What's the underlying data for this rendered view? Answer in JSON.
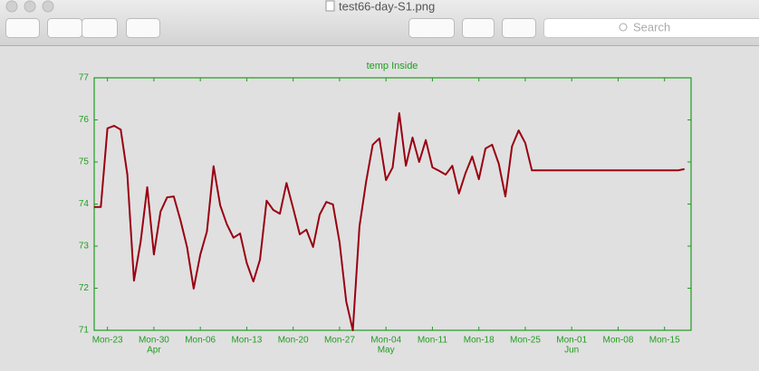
{
  "window": {
    "title": "test66-day-S1.png",
    "search_placeholder": "Search"
  },
  "chart_data": {
    "type": "line",
    "title": "temp Inside",
    "categories": [
      null,
      null,
      "Mon-23",
      null,
      null,
      null,
      null,
      null,
      null,
      "Mon-30",
      null,
      null,
      null,
      null,
      null,
      null,
      "Mon-06",
      null,
      null,
      null,
      null,
      null,
      null,
      "Mon-13",
      null,
      null,
      null,
      null,
      null,
      null,
      "Mon-20",
      null,
      null,
      null,
      null,
      null,
      null,
      "Mon-27",
      null,
      null,
      null,
      null,
      null,
      null,
      "Mon-04",
      null,
      null,
      null,
      null,
      null,
      null,
      "Mon-11",
      null,
      null,
      null,
      null,
      null,
      null,
      "Mon-18",
      null,
      null,
      null,
      null,
      null,
      null,
      "Mon-25",
      null,
      null,
      null,
      null,
      null,
      null,
      "Mon-01",
      null,
      null,
      null,
      null,
      null,
      null,
      "Mon-08",
      null,
      null,
      null,
      null,
      null,
      null,
      "Mon-15",
      null,
      null,
      null
    ],
    "month_labels": [
      null,
      null,
      null,
      null,
      null,
      null,
      null,
      null,
      null,
      "Apr",
      null,
      null,
      null,
      null,
      null,
      null,
      null,
      null,
      null,
      null,
      null,
      null,
      null,
      null,
      null,
      null,
      null,
      null,
      null,
      null,
      null,
      null,
      null,
      null,
      null,
      null,
      null,
      null,
      null,
      null,
      null,
      null,
      null,
      null,
      "May",
      null,
      null,
      null,
      null,
      null,
      null,
      null,
      null,
      null,
      null,
      null,
      null,
      null,
      null,
      null,
      null,
      null,
      null,
      null,
      null,
      null,
      null,
      null,
      null,
      null,
      null,
      null,
      "Jun",
      null,
      null,
      null,
      null,
      null,
      null,
      null,
      null,
      null,
      null,
      null,
      null,
      null,
      null,
      null,
      null,
      null
    ],
    "series": [
      {
        "name": "temp Inside",
        "color": "#990011",
        "values": [
          73.93,
          73.93,
          75.8,
          75.86,
          75.77,
          74.7,
          72.18,
          73.1,
          74.4,
          72.8,
          73.82,
          74.16,
          74.18,
          73.62,
          72.98,
          71.99,
          72.8,
          73.35,
          74.9,
          73.97,
          73.52,
          73.2,
          73.3,
          72.6,
          72.16,
          72.68,
          74.08,
          73.86,
          73.77,
          74.5,
          73.9,
          73.28,
          73.39,
          72.98,
          73.75,
          74.05,
          73.99,
          73.09,
          71.69,
          71.0,
          73.47,
          74.53,
          75.41,
          75.56,
          74.57,
          74.87,
          76.16,
          74.91,
          75.58,
          75.0,
          75.52,
          74.87,
          74.79,
          74.7,
          74.91,
          74.25,
          74.74,
          75.13,
          74.59,
          75.32,
          75.41,
          74.96,
          74.18,
          75.37,
          75.75,
          75.45,
          74.8,
          74.8,
          74.8,
          74.8,
          74.8,
          74.8,
          74.8,
          74.8,
          74.8,
          74.8,
          74.8,
          74.8,
          74.8,
          74.8,
          74.8,
          74.8,
          74.8,
          74.8,
          74.8,
          74.8,
          74.8,
          74.8,
          74.8,
          74.83
        ]
      }
    ],
    "ylim": [
      71,
      77
    ],
    "yticks": [
      71,
      72,
      73,
      74,
      75,
      76,
      77
    ],
    "axis_color": "#1e9e1e",
    "grid": false
  }
}
